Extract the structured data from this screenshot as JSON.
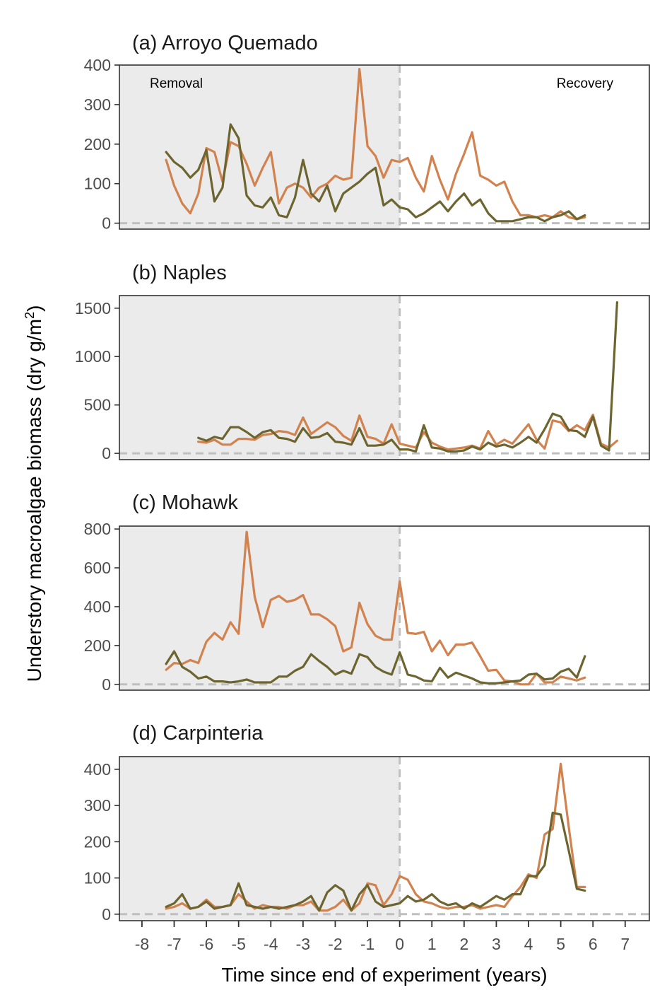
{
  "chart_data": {
    "type": "line",
    "ylabel": "Understory macroalgae biomass (dry g/m²)",
    "xlabel": "Time since end of experiment (years)",
    "xlim": [
      -8.7,
      7.75
    ],
    "x_ticks": [
      -8,
      -7,
      -6,
      -5,
      -4,
      -3,
      -2,
      -1,
      0,
      1,
      2,
      3,
      4,
      5,
      6,
      7
    ],
    "x_tick_labels": [
      "-8",
      "-7",
      "-6",
      "-5",
      "-4",
      "-3",
      "-2",
      "-1",
      "0",
      "1",
      "2",
      "3",
      "4",
      "5",
      "6",
      "7"
    ],
    "shaded_region": {
      "from": -8.7,
      "to": 0,
      "color": "#ebebeb"
    },
    "reference_lines": {
      "x": 0,
      "y": 0,
      "color": "#bfbfbf",
      "style": "dashed"
    },
    "series_colors": {
      "orange": "#d2824e",
      "olive": "#6d6530"
    },
    "region_labels": {
      "left": "Removal",
      "right": "Recovery"
    },
    "panels": [
      {
        "key": "a",
        "title": "(a) Arroyo Quemado",
        "ylim": [
          -15,
          400
        ],
        "y_ticks": [
          0,
          100,
          200,
          300,
          400
        ],
        "y_tick_labels": [
          "0",
          "100",
          "200",
          "300",
          "400"
        ],
        "series": [
          {
            "name": "orange",
            "x": [
              -7.25,
              -7.0,
              -6.75,
              -6.5,
              -6.25,
              -6.0,
              -5.75,
              -5.5,
              -5.25,
              -5.0,
              -4.75,
              -4.5,
              -4.25,
              -4.0,
              -3.75,
              -3.5,
              -3.25,
              -3.0,
              -2.75,
              -2.5,
              -2.25,
              -2.0,
              -1.75,
              -1.5,
              -1.25,
              -1.0,
              -0.75,
              -0.5,
              -0.25,
              0.0,
              0.25,
              0.5,
              0.75,
              1.0,
              1.25,
              1.5,
              1.75,
              2.0,
              2.25,
              2.5,
              2.75,
              3.0,
              3.25,
              3.5,
              3.75,
              4.0,
              4.25,
              4.5,
              4.75,
              5.0,
              5.25,
              5.5,
              5.75
            ],
            "y": [
              160,
              95,
              50,
              25,
              75,
              190,
              180,
              105,
              205,
              195,
              150,
              95,
              140,
              180,
              50,
              90,
              100,
              90,
              65,
              90,
              100,
              120,
              110,
              115,
              390,
              195,
              170,
              115,
              160,
              155,
              165,
              115,
              80,
              170,
              110,
              60,
              125,
              175,
              230,
              120,
              110,
              95,
              105,
              55,
              20,
              20,
              15,
              20,
              15,
              30,
              15,
              10,
              15
            ]
          },
          {
            "name": "olive",
            "x": [
              -7.25,
              -7.0,
              -6.75,
              -6.5,
              -6.25,
              -6.0,
              -5.75,
              -5.5,
              -5.25,
              -5.0,
              -4.75,
              -4.5,
              -4.25,
              -4.0,
              -3.75,
              -3.5,
              -3.25,
              -3.0,
              -2.75,
              -2.5,
              -2.25,
              -2.0,
              -1.75,
              -1.5,
              -1.25,
              -1.0,
              -0.75,
              -0.5,
              -0.25,
              0.0,
              0.25,
              0.5,
              0.75,
              1.0,
              1.25,
              1.5,
              1.75,
              2.0,
              2.25,
              2.5,
              2.75,
              3.0,
              3.25,
              3.5,
              3.75,
              4.0,
              4.25,
              4.5,
              4.75,
              5.0,
              5.25,
              5.5,
              5.75
            ],
            "y": [
              180,
              155,
              140,
              115,
              135,
              185,
              55,
              90,
              250,
              215,
              70,
              45,
              40,
              65,
              20,
              15,
              65,
              160,
              75,
              55,
              95,
              30,
              75,
              90,
              105,
              125,
              140,
              45,
              60,
              40,
              35,
              15,
              25,
              40,
              55,
              30,
              55,
              75,
              45,
              60,
              25,
              5,
              5,
              5,
              10,
              15,
              15,
              5,
              15,
              20,
              30,
              10,
              20
            ]
          }
        ]
      },
      {
        "key": "b",
        "title": "(b) Naples",
        "ylim": [
          -65,
          1630
        ],
        "y_ticks": [
          0,
          500,
          1000,
          1500
        ],
        "y_tick_labels": [
          "0",
          "500",
          "1000",
          "1500"
        ],
        "series": [
          {
            "name": "orange",
            "x": [
              -6.25,
              -6.0,
              -5.75,
              -5.5,
              -5.25,
              -5.0,
              -4.75,
              -4.5,
              -4.25,
              -4.0,
              -3.75,
              -3.5,
              -3.25,
              -3.0,
              -2.75,
              -2.5,
              -2.25,
              -2.0,
              -1.75,
              -1.5,
              -1.25,
              -1.0,
              -0.75,
              -0.5,
              -0.25,
              0.0,
              0.25,
              0.5,
              0.75,
              1.0,
              1.25,
              1.5,
              1.75,
              2.0,
              2.25,
              2.5,
              2.75,
              3.0,
              3.25,
              3.5,
              3.75,
              4.0,
              4.25,
              4.5,
              4.75,
              5.0,
              5.25,
              5.5,
              5.75,
              6.0,
              6.25,
              6.5,
              6.75
            ],
            "y": [
              120,
              110,
              140,
              90,
              90,
              150,
              150,
              140,
              190,
              200,
              230,
              220,
              190,
              370,
              200,
              260,
              320,
              270,
              180,
              130,
              390,
              170,
              150,
              100,
              300,
              100,
              80,
              60,
              220,
              110,
              70,
              40,
              50,
              60,
              80,
              50,
              230,
              90,
              140,
              100,
              200,
              300,
              140,
              50,
              340,
              320,
              230,
              290,
              240,
              400,
              100,
              60,
              130
            ]
          },
          {
            "name": "olive",
            "x": [
              -6.25,
              -6.0,
              -5.75,
              -5.5,
              -5.25,
              -5.0,
              -4.75,
              -4.5,
              -4.25,
              -4.0,
              -3.75,
              -3.5,
              -3.25,
              -3.0,
              -2.75,
              -2.5,
              -2.25,
              -2.0,
              -1.75,
              -1.5,
              -1.25,
              -1.0,
              -0.75,
              -0.5,
              -0.25,
              0.0,
              0.25,
              0.5,
              0.75,
              1.0,
              1.25,
              1.5,
              1.75,
              2.0,
              2.25,
              2.5,
              2.75,
              3.0,
              3.25,
              3.5,
              3.75,
              4.0,
              4.25,
              4.5,
              4.75,
              5.0,
              5.25,
              5.5,
              5.75,
              6.0,
              6.25,
              6.5,
              6.75
            ],
            "y": [
              160,
              130,
              170,
              150,
              270,
              270,
              220,
              160,
              220,
              240,
              160,
              150,
              120,
              260,
              160,
              170,
              210,
              120,
              110,
              90,
              260,
              80,
              80,
              90,
              140,
              40,
              40,
              20,
              290,
              60,
              50,
              20,
              20,
              30,
              70,
              40,
              110,
              70,
              90,
              60,
              110,
              170,
              110,
              250,
              410,
              380,
              240,
              230,
              170,
              380,
              80,
              30,
              1560
            ]
          }
        ]
      },
      {
        "key": "c",
        "title": "(c) Mohawk",
        "ylim": [
          -30,
          815
        ],
        "y_ticks": [
          0,
          200,
          400,
          600,
          800
        ],
        "y_tick_labels": [
          "0",
          "200",
          "400",
          "600",
          "800"
        ],
        "series": [
          {
            "name": "orange",
            "x": [
              -7.25,
              -7.0,
              -6.75,
              -6.5,
              -6.25,
              -6.0,
              -5.75,
              -5.5,
              -5.25,
              -5.0,
              -4.75,
              -4.5,
              -4.25,
              -4.0,
              -3.75,
              -3.5,
              -3.25,
              -3.0,
              -2.75,
              -2.5,
              -2.25,
              -2.0,
              -1.75,
              -1.5,
              -1.25,
              -1.0,
              -0.75,
              -0.5,
              -0.25,
              0.0,
              0.25,
              0.5,
              0.75,
              1.0,
              1.25,
              1.5,
              1.75,
              2.0,
              2.25,
              2.5,
              2.75,
              3.0,
              3.25,
              3.5,
              3.75,
              4.0,
              4.25,
              4.5,
              4.75,
              5.0,
              5.25,
              5.5,
              5.75
            ],
            "y": [
              75,
              110,
              105,
              125,
              110,
              220,
              265,
              230,
              320,
              260,
              785,
              450,
              295,
              435,
              455,
              425,
              435,
              460,
              360,
              360,
              335,
              300,
              170,
              190,
              420,
              310,
              250,
              230,
              230,
              530,
              265,
              260,
              270,
              170,
              225,
              150,
              205,
              205,
              215,
              145,
              70,
              75,
              20,
              15,
              0,
              0,
              55,
              10,
              10,
              40,
              30,
              20,
              35
            ]
          },
          {
            "name": "olive",
            "x": [
              -7.25,
              -7.0,
              -6.75,
              -6.5,
              -6.25,
              -6.0,
              -5.75,
              -5.5,
              -5.25,
              -5.0,
              -4.75,
              -4.5,
              -4.25,
              -4.0,
              -3.75,
              -3.5,
              -3.25,
              -3.0,
              -2.75,
              -2.5,
              -2.25,
              -2.0,
              -1.75,
              -1.5,
              -1.25,
              -1.0,
              -0.75,
              -0.5,
              -0.25,
              0.0,
              0.25,
              0.5,
              0.75,
              1.0,
              1.25,
              1.5,
              1.75,
              2.0,
              2.25,
              2.5,
              2.75,
              3.0,
              3.25,
              3.5,
              3.75,
              4.0,
              4.25,
              4.5,
              4.75,
              5.0,
              5.25,
              5.5,
              5.75
            ],
            "y": [
              105,
              170,
              90,
              65,
              30,
              40,
              15,
              15,
              10,
              15,
              25,
              10,
              10,
              10,
              40,
              40,
              70,
              90,
              155,
              120,
              90,
              50,
              70,
              55,
              155,
              140,
              90,
              65,
              50,
              165,
              50,
              40,
              20,
              15,
              85,
              35,
              60,
              45,
              30,
              10,
              5,
              5,
              10,
              15,
              20,
              50,
              55,
              25,
              30,
              65,
              80,
              35,
              145
            ]
          }
        ]
      },
      {
        "key": "d",
        "title": "(d) Carpinteria",
        "ylim": [
          -18,
          435
        ],
        "y_ticks": [
          0,
          100,
          200,
          300,
          400
        ],
        "y_tick_labels": [
          "0",
          "100",
          "200",
          "300",
          "400"
        ],
        "series": [
          {
            "name": "orange",
            "x": [
              -7.25,
              -7.0,
              -6.75,
              -6.5,
              -6.25,
              -6.0,
              -5.75,
              -5.5,
              -5.25,
              -5.0,
              -4.75,
              -4.5,
              -4.25,
              -4.0,
              -3.75,
              -3.5,
              -3.25,
              -3.0,
              -2.75,
              -2.5,
              -2.25,
              -2.0,
              -1.75,
              -1.5,
              -1.25,
              -1.0,
              -0.75,
              -0.5,
              -0.25,
              0.0,
              0.25,
              0.5,
              0.75,
              1.0,
              1.25,
              1.5,
              1.75,
              2.0,
              2.25,
              2.5,
              2.75,
              3.0,
              3.25,
              3.5,
              3.75,
              4.0,
              4.25,
              4.5,
              4.75,
              5.0,
              5.25,
              5.5,
              5.75
            ],
            "y": [
              15,
              20,
              30,
              15,
              20,
              40,
              20,
              20,
              25,
              55,
              35,
              15,
              25,
              20,
              20,
              15,
              25,
              25,
              35,
              10,
              10,
              20,
              40,
              10,
              30,
              85,
              80,
              25,
              55,
              105,
              95,
              55,
              35,
              30,
              20,
              15,
              20,
              20,
              25,
              15,
              20,
              25,
              20,
              50,
              75,
              110,
              100,
              220,
              235,
              415,
              240,
              75,
              75
            ]
          },
          {
            "name": "olive",
            "x": [
              -7.25,
              -7.0,
              -6.75,
              -6.5,
              -6.25,
              -6.0,
              -5.75,
              -5.5,
              -5.25,
              -5.0,
              -4.75,
              -4.5,
              -4.25,
              -4.0,
              -3.75,
              -3.5,
              -3.25,
              -3.0,
              -2.75,
              -2.5,
              -2.25,
              -2.0,
              -1.75,
              -1.5,
              -1.25,
              -1.0,
              -0.75,
              -0.5,
              -0.25,
              0.0,
              0.25,
              0.5,
              0.75,
              1.0,
              1.25,
              1.5,
              1.75,
              2.0,
              2.25,
              2.5,
              2.75,
              3.0,
              3.25,
              3.5,
              3.75,
              4.0,
              4.25,
              4.5,
              4.75,
              5.0,
              5.25,
              5.5,
              5.75
            ],
            "y": [
              20,
              30,
              55,
              15,
              20,
              35,
              15,
              20,
              25,
              85,
              25,
              20,
              15,
              20,
              15,
              20,
              25,
              35,
              50,
              10,
              60,
              80,
              65,
              10,
              55,
              80,
              35,
              20,
              25,
              30,
              50,
              35,
              40,
              55,
              35,
              25,
              30,
              15,
              30,
              20,
              35,
              50,
              40,
              55,
              55,
              105,
              105,
              135,
              280,
              275,
              175,
              70,
              65
            ]
          }
        ]
      }
    ]
  }
}
